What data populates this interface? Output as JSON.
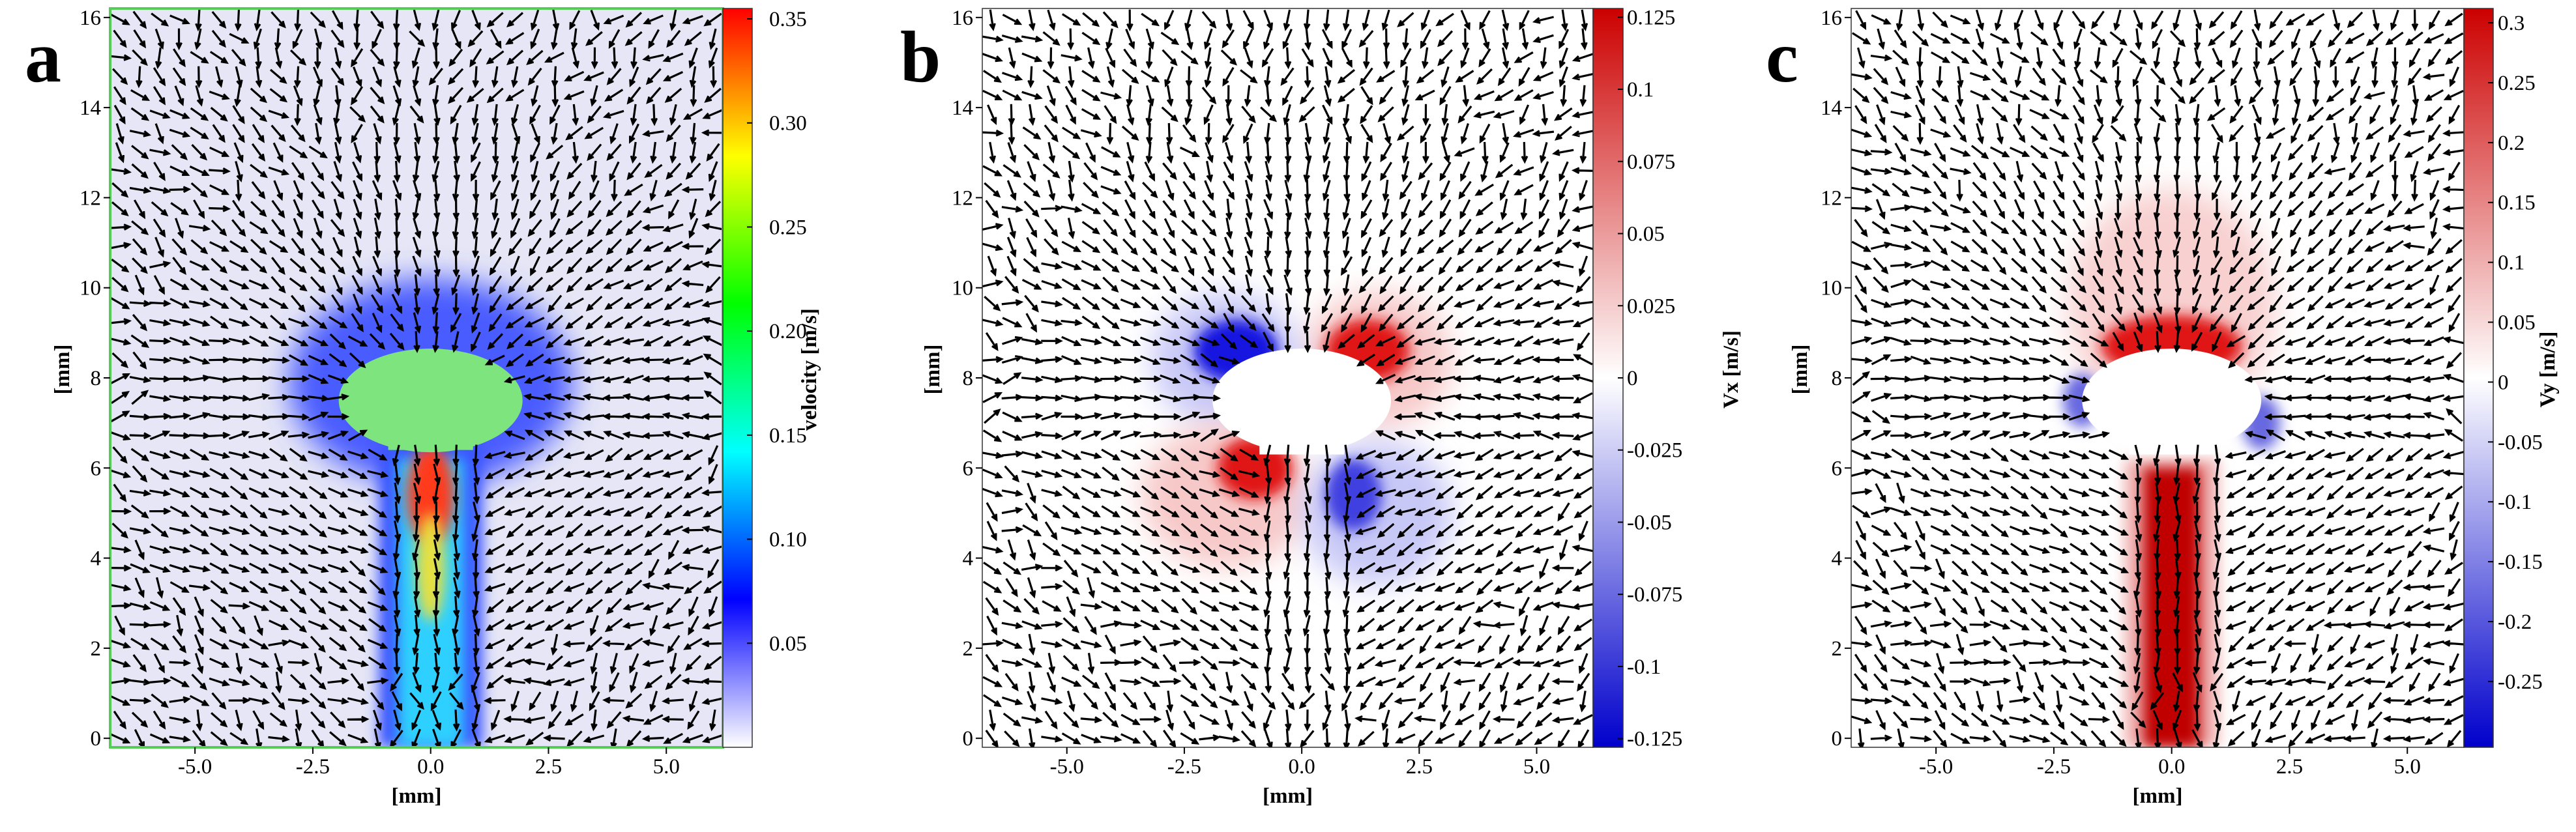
{
  "chart_data": [
    {
      "type": "heatmap",
      "panel_label": "a",
      "xlabel": "[mm]",
      "ylabel": "[mm]",
      "colorbar_label": "velocity [m/s]",
      "xlim": [
        -6.8,
        6.2
      ],
      "ylim": [
        -0.2,
        16.2
      ],
      "xticks": [
        {
          "value": -5,
          "label": "-5.0"
        },
        {
          "value": -2.5,
          "label": "-2.5"
        },
        {
          "value": 0,
          "label": "0.0"
        },
        {
          "value": 2.5,
          "label": "2.5"
        },
        {
          "value": 5,
          "label": "5.0"
        }
      ],
      "yticks": [
        0,
        2,
        4,
        6,
        8,
        10,
        12,
        14,
        16
      ],
      "clim": [
        0,
        0.355
      ],
      "cticks": [
        0.05,
        {
          "value": 0.1,
          "label": "0.10"
        },
        0.15,
        {
          "value": 0.2,
          "label": "0.20"
        },
        0.25,
        {
          "value": 0.3,
          "label": "0.30"
        },
        0.35
      ],
      "colormap": [
        "#ffffff",
        "#0000ff",
        "#00ffff",
        "#00ff00",
        "#ffff00",
        "#ff0000"
      ]
    },
    {
      "type": "heatmap",
      "panel_label": "b",
      "xlabel": "[mm]",
      "ylabel": "[mm]",
      "colorbar_label": "Vx [m/s]",
      "xlim": [
        -6.8,
        6.2
      ],
      "ylim": [
        -0.2,
        16.2
      ],
      "xticks": [
        {
          "value": -5,
          "label": "-5.0"
        },
        {
          "value": -2.5,
          "label": "-2.5"
        },
        {
          "value": 0,
          "label": "0.0"
        },
        {
          "value": 2.5,
          "label": "2.5"
        },
        {
          "value": 5,
          "label": "5.0"
        }
      ],
      "yticks": [
        0,
        2,
        4,
        6,
        8,
        10,
        12,
        14,
        16
      ],
      "clim": [
        -0.128,
        0.128
      ],
      "cticks": [
        0.125,
        0.1,
        0.075,
        0.05,
        0.025,
        0,
        -0.025,
        -0.05,
        -0.075,
        -0.1,
        -0.125
      ],
      "colormap": [
        "#0000cc",
        "#ffffff",
        "#cc0000"
      ]
    },
    {
      "type": "heatmap",
      "panel_label": "c",
      "xlabel": "[mm]",
      "ylabel": "[mm]",
      "colorbar_label": "Vy [m/s]",
      "xlim": [
        -6.8,
        6.2
      ],
      "ylim": [
        -0.2,
        16.2
      ],
      "xticks": [
        {
          "value": -5,
          "label": "-5.0"
        },
        {
          "value": -2.5,
          "label": "-2.5"
        },
        {
          "value": 0,
          "label": "0.0"
        },
        {
          "value": 2.5,
          "label": "2.5"
        },
        {
          "value": 5,
          "label": "5.0"
        }
      ],
      "yticks": [
        0,
        2,
        4,
        6,
        8,
        10,
        12,
        14,
        16
      ],
      "clim": [
        -0.305,
        0.312
      ],
      "cticks": [
        0.3,
        0.25,
        0.2,
        0.15,
        0.1,
        0.05,
        0,
        -0.05,
        -0.1,
        -0.15,
        -0.2,
        -0.25
      ],
      "colormap": [
        "#0000cc",
        "#ffffff",
        "#cc0000"
      ]
    }
  ]
}
